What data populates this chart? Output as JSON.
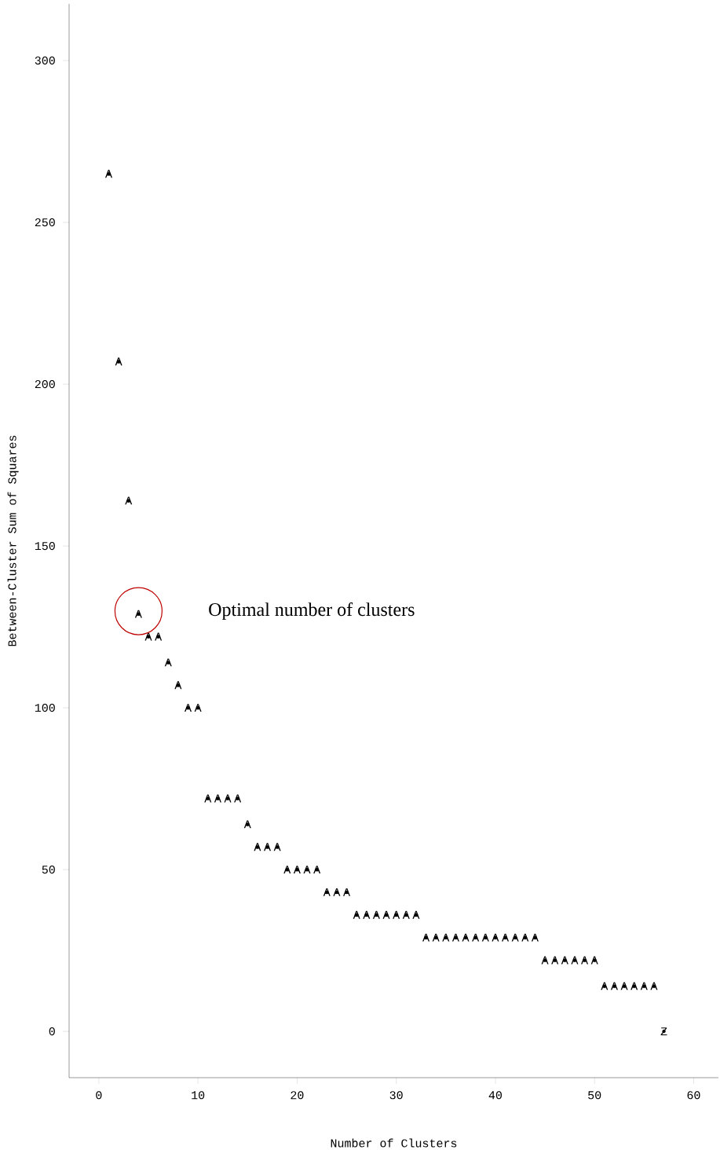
{
  "chart_data": {
    "type": "scatter",
    "xlabel": "Number of Clusters",
    "ylabel": "Between-Cluster Sum of Squares",
    "x": [
      1,
      2,
      3,
      4,
      5,
      6,
      7,
      8,
      9,
      10,
      11,
      12,
      13,
      14,
      15,
      16,
      17,
      18,
      19,
      20,
      21,
      22,
      23,
      24,
      25,
      26,
      27,
      28,
      29,
      30,
      31,
      32,
      33,
      34,
      35,
      36,
      37,
      38,
      39,
      40,
      41,
      42,
      43,
      44,
      45,
      46,
      47,
      48,
      49,
      50,
      51,
      52,
      53,
      54,
      55,
      56,
      57
    ],
    "values": [
      265,
      207,
      164,
      129,
      122,
      122,
      114,
      107,
      100,
      100,
      72,
      72,
      72,
      72,
      64,
      57,
      57,
      57,
      50,
      50,
      50,
      50,
      43,
      43,
      43,
      36,
      36,
      36,
      36,
      36,
      36,
      36,
      29,
      29,
      29,
      29,
      29,
      29,
      29,
      29,
      29,
      29,
      29,
      29,
      22,
      22,
      22,
      22,
      22,
      22,
      14,
      14,
      14,
      14,
      14,
      14,
      0
    ],
    "value_labels": [
      "A",
      "A",
      "A",
      "A",
      "A",
      "A",
      "A",
      "A",
      "A",
      "A",
      "A",
      "A",
      "A",
      "A",
      "A",
      "A",
      "A",
      "A",
      "A",
      "A",
      "A",
      "A",
      "A",
      "A",
      "A",
      "A",
      "A",
      "A",
      "A",
      "A",
      "A",
      "A",
      "A",
      "A",
      "A",
      "A",
      "A",
      "A",
      "A",
      "A",
      "A",
      "A",
      "A",
      "A",
      "A",
      "A",
      "A",
      "A",
      "A",
      "A",
      "A",
      "A",
      "A",
      "A",
      "A",
      "A",
      "Z"
    ],
    "color": "#000000",
    "xlim": [
      -3,
      62.5
    ],
    "ylim": [
      -14.3,
      317.5
    ],
    "xticks": [
      0,
      10,
      20,
      30,
      40,
      50,
      60
    ],
    "yticks": [
      0,
      50,
      100,
      150,
      200,
      250,
      300
    ],
    "annotations": [
      "Optimal number of clusters"
    ]
  }
}
